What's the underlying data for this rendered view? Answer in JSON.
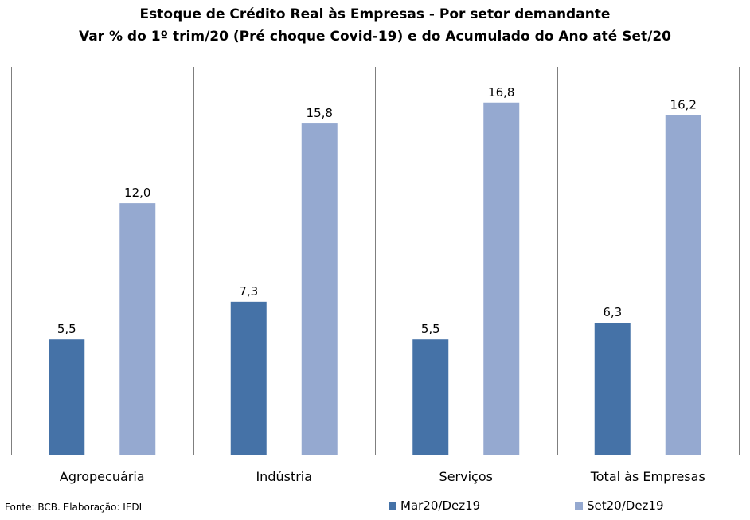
{
  "chart_data": {
    "type": "bar",
    "title": "Estoque de Crédito Real às Empresas - Por setor demandante",
    "subtitle": "Var % do 1º trim/20 (Pré choque Covid-19) e do Acumulado do Ano até Set/20",
    "categories": [
      "Agropecuária",
      "Indústria",
      "Serviços",
      "Total às Empresas"
    ],
    "series": [
      {
        "name": "Mar20/Dez19",
        "color": "#4572A7",
        "values": [
          5.5,
          7.3,
          5.5,
          6.3
        ],
        "labels": [
          "5,5",
          "7,3",
          "5,5",
          "6,3"
        ]
      },
      {
        "name": "Set20/Dez19",
        "color": "#95A9D0",
        "values": [
          12.0,
          15.8,
          16.8,
          16.2
        ],
        "labels": [
          "12,0",
          "15,8",
          "16,8",
          "16,2"
        ]
      }
    ],
    "ylim": [
      0,
      18.5
    ],
    "grid": false,
    "legend_position": "bottom-right",
    "source": "Fonte: BCB. Elaboração: IEDI"
  }
}
